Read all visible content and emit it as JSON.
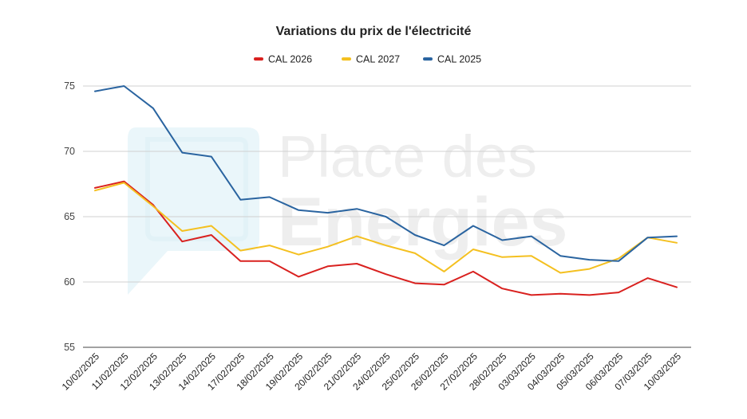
{
  "watermark": {
    "line1": "Place des",
    "line2": "Energies"
  },
  "chart_data": {
    "type": "line",
    "title": "Variations du prix de l'électricité",
    "xlabel": "",
    "ylabel": "",
    "ylim": [
      55,
      75
    ],
    "yticks": [
      55,
      60,
      65,
      70,
      75
    ],
    "grid": true,
    "legend_position": "top-center",
    "categories": [
      "10/02/2025",
      "11/02/2025",
      "12/02/2025",
      "13/02/2025",
      "14/02/2025",
      "17/02/2025",
      "18/02/2025",
      "19/02/2025",
      "20/02/2025",
      "21/02/2025",
      "24/02/2025",
      "25/02/2025",
      "26/02/2025",
      "27/02/2025",
      "28/02/2025",
      "03/03/2025",
      "04/03/2025",
      "05/03/2025",
      "06/03/2025",
      "07/03/2025",
      "10/03/2025"
    ],
    "series": [
      {
        "name": "CAL 2026",
        "color": "#d9211f",
        "values": [
          67.2,
          67.7,
          65.9,
          63.1,
          63.6,
          61.6,
          61.6,
          60.4,
          61.2,
          61.4,
          60.6,
          59.9,
          59.8,
          60.8,
          59.5,
          59.0,
          59.1,
          59.0,
          59.2,
          60.3,
          59.6
        ]
      },
      {
        "name": "CAL 2027",
        "color": "#f4c020",
        "values": [
          67.0,
          67.6,
          65.8,
          63.9,
          64.3,
          62.4,
          62.8,
          62.1,
          62.7,
          63.5,
          62.8,
          62.2,
          60.8,
          62.5,
          61.9,
          62.0,
          60.7,
          61.0,
          61.8,
          63.4,
          63.0
        ]
      },
      {
        "name": "CAL 2025",
        "color": "#2a64a0",
        "values": [
          74.6,
          75.0,
          73.3,
          69.9,
          69.6,
          66.3,
          66.5,
          65.5,
          65.3,
          65.6,
          65.0,
          63.6,
          62.8,
          64.3,
          63.2,
          63.5,
          62.0,
          61.7,
          61.6,
          63.4,
          63.5
        ]
      }
    ]
  }
}
